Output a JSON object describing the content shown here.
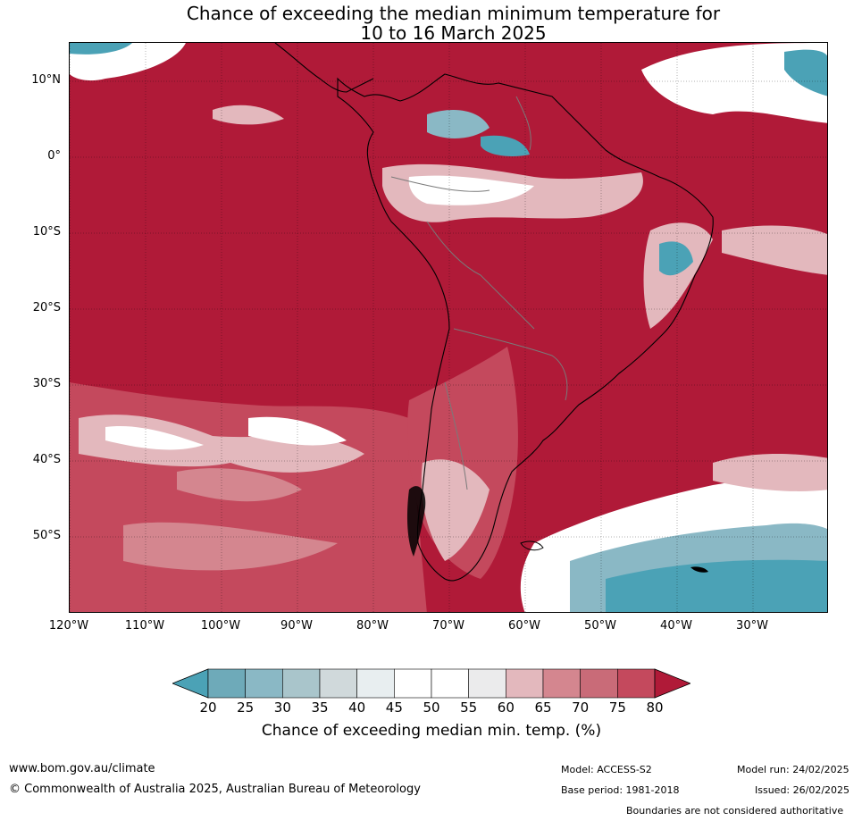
{
  "title": {
    "line1": "Chance of exceeding the median minimum temperature for",
    "line2": "10 to 16 March 2025"
  },
  "map": {
    "lat_labels": [
      "10°N",
      "0°",
      "10°S",
      "20°S",
      "30°S",
      "40°S",
      "50°S"
    ],
    "lon_labels": [
      "120°W",
      "110°W",
      "100°W",
      "90°W",
      "80°W",
      "70°W",
      "60°W",
      "50°W",
      "40°W",
      "30°W"
    ],
    "colors": {
      "hot": "#b01a38",
      "warm": "#c4495d",
      "mild": "#d4868f",
      "pale": "#e3b8bd",
      "neutral": "#ffffff",
      "cool_pale": "#d4dde0",
      "cool": "#8ab8c5",
      "cold": "#4ba2b6"
    }
  },
  "colorbar": {
    "ticks": [
      "20",
      "25",
      "30",
      "35",
      "40",
      "45",
      "50",
      "55",
      "60",
      "65",
      "70",
      "75",
      "80"
    ],
    "colors": [
      "#4ba2b6",
      "#6eaab9",
      "#8ab8c5",
      "#a9c5cb",
      "#d0d9db",
      "#e8eef0",
      "#ffffff",
      "#ffffff",
      "#ebebec",
      "#e3b8bd",
      "#d4868f",
      "#c96b78",
      "#c4495d",
      "#b01a38"
    ],
    "label": "Chance of exceeding median min. temp. (%)"
  },
  "footer": {
    "website": "www.bom.gov.au/climate",
    "copyright": "© Commonwealth of Australia 2025, Australian Bureau of Meteorology",
    "model": "Model: ACCESS-S2",
    "base_period": "Base period: 1981-2018",
    "model_run": "Model run: 24/02/2025",
    "issued": "Issued: 26/02/2025",
    "disclaimer": "Boundaries are not considered authoritative"
  }
}
